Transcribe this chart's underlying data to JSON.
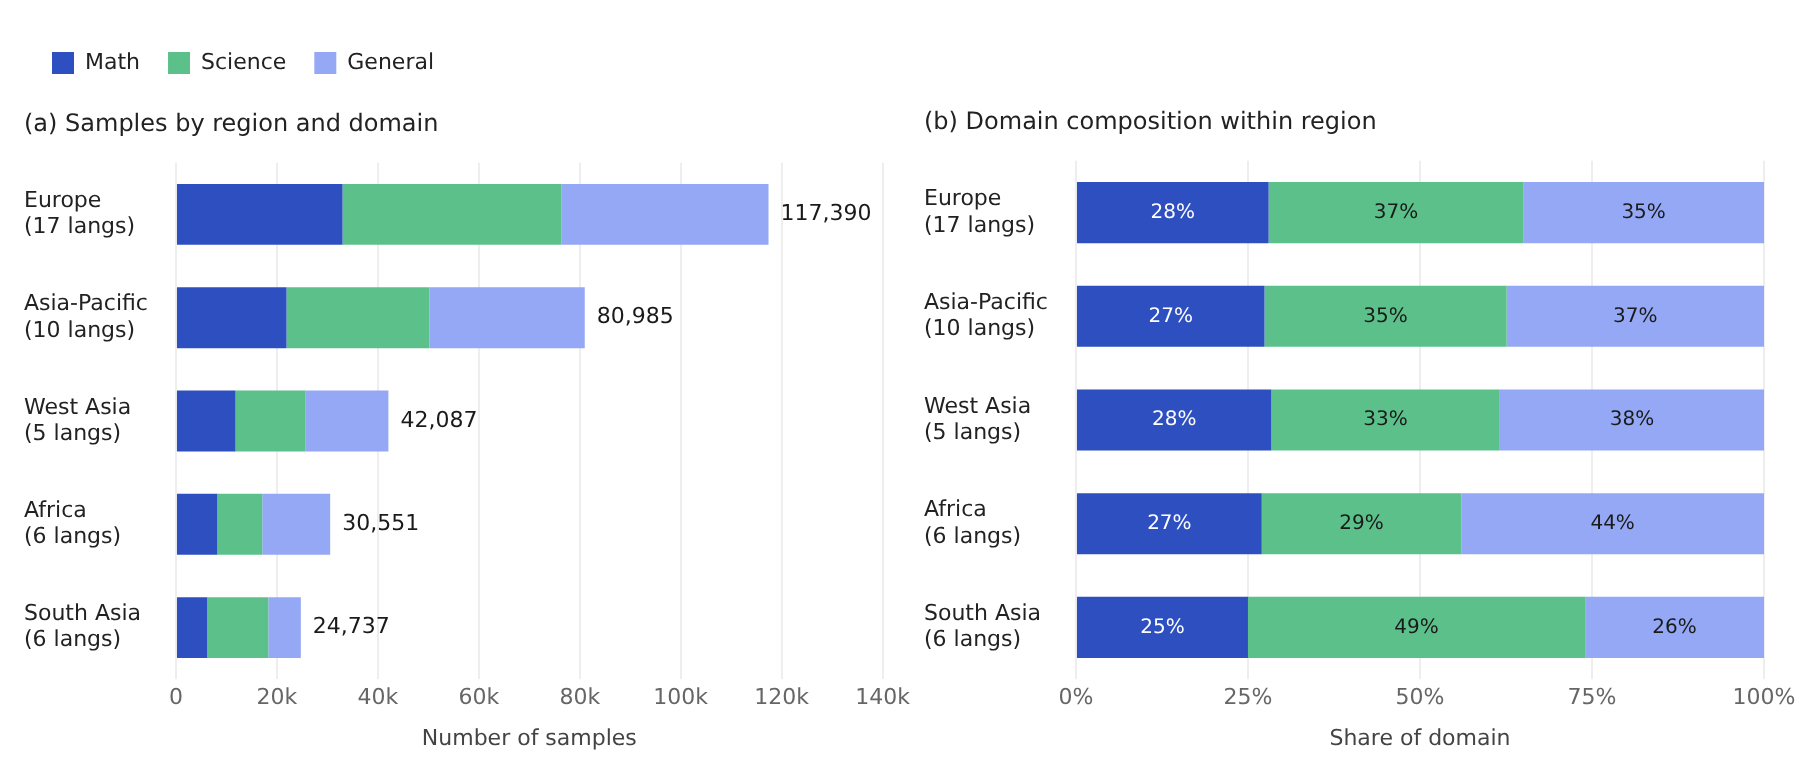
{
  "chart_data": [
    {
      "type": "bar",
      "title": "(a) Samples by region and domain",
      "orientation": "horizontal",
      "stacked": true,
      "legend": "top left",
      "grid": "x",
      "xlabel": "Number of samples",
      "categories": [
        "Europe\n(17 langs)",
        "Asia-Pacific\n(10 langs)",
        "West Asia\n(5 langs)",
        "Africa\n(6 langs)",
        "South Asia\n(6 langs)"
      ],
      "series": [
        {
          "name": "Math",
          "color": "#2d4fc0",
          "values": [
            33000,
            21900,
            11800,
            8200,
            6200
          ]
        },
        {
          "name": "Science",
          "color": "#5cc08a",
          "values": [
            43400,
            28300,
            13900,
            8900,
            12100
          ]
        },
        {
          "name": "General",
          "color": "#94a8f5",
          "values": [
            40990,
            30785,
            16387,
            13451,
            6437
          ]
        }
      ],
      "totals": [
        "117,390",
        "80,985",
        "42,087",
        "30,551",
        "24,737"
      ],
      "xlim": [
        0,
        140000
      ],
      "xticks": [
        0,
        {
          "value": 20000,
          "label": "20k"
        },
        {
          "value": 40000,
          "label": "40k"
        },
        {
          "value": 60000,
          "label": "60k"
        },
        {
          "value": 80000,
          "label": "80k"
        },
        {
          "value": 100000,
          "label": "100k"
        },
        {
          "value": 120000,
          "label": "120k"
        },
        {
          "value": 140000,
          "label": "140k"
        }
      ]
    },
    {
      "type": "bar",
      "title": "(b) Domain composition within region",
      "orientation": "horizontal",
      "stacked": true,
      "grid": "x",
      "xlabel": "Share of domain",
      "categories": [
        "Europe\n(17 langs)",
        "Asia-Pacific\n(10 langs)",
        "West Asia\n(5 langs)",
        "Africa\n(6 langs)",
        "South Asia\n(6 langs)"
      ],
      "series": [
        {
          "color": "#2d4fc0",
          "values": [
            28,
            27.4,
            28.4,
            27,
            25
          ],
          "value_labels": [
            "28%",
            "27%",
            "28%",
            "27%",
            "25%"
          ]
        },
        {
          "color": "#5cc08a",
          "values": [
            37,
            35.2,
            33.2,
            29,
            49
          ],
          "value_labels": [
            "37%",
            "35%",
            "33%",
            "29%",
            "49%"
          ]
        },
        {
          "color": "#94a8f5",
          "values": [
            35,
            37.4,
            38.4,
            44,
            26
          ],
          "value_labels": [
            "35%",
            "37%",
            "38%",
            "44%",
            "26%"
          ]
        }
      ],
      "xlim": [
        0,
        100
      ],
      "xticks": [
        {
          "value": 0,
          "label": "0%"
        },
        {
          "value": 25,
          "label": "25%"
        },
        {
          "value": 50,
          "label": "50%"
        },
        {
          "value": 75,
          "label": "75%"
        },
        {
          "value": 100,
          "label": "100%"
        }
      ]
    }
  ]
}
